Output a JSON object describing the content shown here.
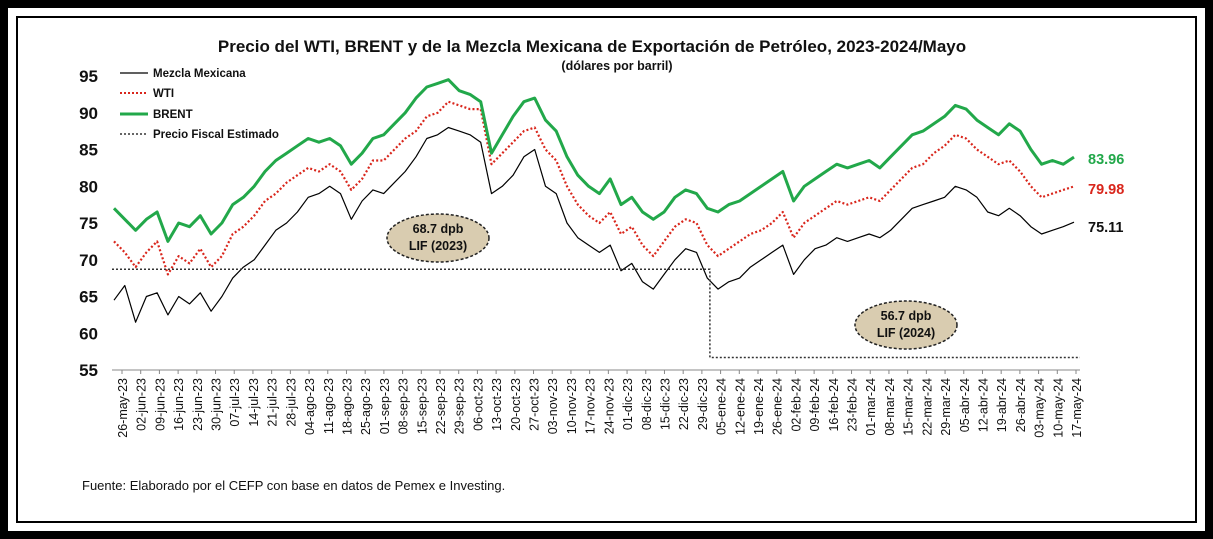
{
  "chart_data": {
    "type": "line",
    "title": "Precio del WTI, BRENT y de la Mezcla Mexicana de Exportación de Petróleo, 2023-2024/Mayo",
    "subtitle": "(dólares por barril)",
    "source": "Fuente: Elaborado por el CEFP con base en datos de Pemex e Investing.",
    "ylim": [
      55,
      95
    ],
    "yticks": [
      55,
      60,
      65,
      70,
      75,
      80,
      85,
      90,
      95
    ],
    "x_start": "26-may-23",
    "x_end": "17-may-24",
    "tick_labels": [
      "26-may-23",
      "02-jun-23",
      "09-jun-23",
      "16-jun-23",
      "23-jun-23",
      "30-jun-23",
      "07-jul-23",
      "14-jul-23",
      "21-jul-23",
      "28-jul-23",
      "04-ago-23",
      "11-ago-23",
      "18-ago-23",
      "25-ago-23",
      "01-sep-23",
      "08-sep-23",
      "15-sep-23",
      "22-sep-23",
      "29-sep-23",
      "06-oct-23",
      "13-oct-23",
      "20-oct-23",
      "27-oct-23",
      "03-nov-23",
      "10-nov-23",
      "17-nov-23",
      "24-nov-23",
      "01-dic-23",
      "08-dic-23",
      "15-dic-23",
      "22-dic-23",
      "29-dic-23",
      "05-ene-24",
      "12-ene-24",
      "19-ene-24",
      "26-ene-24",
      "02-feb-24",
      "09-feb-24",
      "16-feb-24",
      "23-feb-24",
      "01-mar-24",
      "08-mar-24",
      "15-mar-24",
      "22-mar-24",
      "29-mar-24",
      "05-abr-24",
      "12-abr-24",
      "19-abr-24",
      "26-abr-24",
      "03-may-24",
      "10-may-24",
      "17-may-24"
    ],
    "legend": [
      "Mezcla Mexicana",
      "WTI",
      "BRENT",
      "Precio Fiscal Estimado"
    ],
    "colors": {
      "mezcla": "#000000",
      "wti": "#d9261c",
      "brent": "#22a84a",
      "fiscal": "#333333"
    },
    "series": [
      {
        "name": "Mezcla Mexicana",
        "key": "mezcla",
        "values": [
          64.5,
          66.5,
          61.5,
          65.0,
          65.5,
          62.5,
          65.0,
          64.0,
          65.5,
          63.0,
          65.0,
          67.5,
          69.0,
          70.0,
          72.0,
          74.0,
          75.0,
          76.5,
          78.5,
          79.0,
          80.0,
          79.0,
          75.5,
          78.0,
          79.5,
          79.0,
          80.5,
          82.0,
          84.0,
          86.5,
          87.0,
          88.0,
          87.5,
          87.0,
          86.0,
          79.0,
          80.0,
          81.5,
          84.0,
          85.0,
          80.0,
          79.0,
          75.0,
          73.0,
          72.0,
          71.0,
          72.0,
          68.5,
          69.5,
          67.0,
          66.0,
          68.0,
          70.0,
          71.5,
          71.0,
          67.5,
          66.0,
          67.0,
          67.5,
          69.0,
          70.0,
          71.0,
          72.0,
          68.0,
          70.0,
          71.5,
          72.0,
          73.0,
          72.5,
          73.0,
          73.5,
          73.0,
          74.0,
          75.5,
          77.0,
          77.5,
          78.0,
          78.5,
          80.0,
          79.5,
          78.5,
          76.5,
          76.0,
          77.0,
          76.0,
          74.5,
          73.5,
          74.0,
          74.5,
          75.11
        ]
      },
      {
        "name": "WTI",
        "key": "wti",
        "values": [
          72.5,
          71.0,
          69.0,
          71.0,
          72.5,
          68.0,
          70.5,
          69.5,
          71.5,
          69.0,
          70.5,
          73.5,
          74.5,
          76.0,
          78.0,
          79.0,
          80.5,
          81.5,
          82.5,
          82.0,
          83.0,
          82.0,
          79.5,
          81.0,
          83.5,
          83.5,
          85.0,
          86.5,
          87.5,
          89.5,
          90.0,
          91.5,
          91.0,
          90.5,
          90.5,
          83.0,
          84.5,
          86.0,
          87.5,
          88.0,
          85.0,
          83.5,
          80.0,
          77.5,
          76.0,
          75.0,
          76.5,
          73.5,
          74.5,
          72.0,
          70.5,
          72.5,
          74.5,
          75.5,
          75.0,
          72.0,
          70.5,
          71.5,
          72.5,
          73.5,
          74.0,
          75.0,
          76.5,
          73.0,
          75.0,
          76.0,
          77.0,
          78.0,
          77.5,
          78.0,
          78.5,
          78.0,
          79.5,
          81.0,
          82.5,
          83.0,
          84.5,
          85.5,
          87.0,
          86.5,
          85.0,
          84.0,
          83.0,
          83.5,
          82.0,
          80.0,
          78.5,
          79.0,
          79.5,
          79.98
        ]
      },
      {
        "name": "BRENT",
        "key": "brent",
        "values": [
          77.0,
          75.5,
          74.0,
          75.5,
          76.5,
          72.5,
          75.0,
          74.5,
          76.0,
          73.5,
          75.0,
          77.5,
          78.5,
          80.0,
          82.0,
          83.5,
          84.5,
          85.5,
          86.5,
          86.0,
          86.5,
          85.5,
          83.0,
          84.5,
          86.5,
          87.0,
          88.5,
          90.0,
          92.0,
          93.5,
          94.0,
          94.5,
          93.0,
          92.5,
          91.5,
          84.5,
          87.0,
          89.5,
          91.5,
          92.0,
          89.0,
          87.5,
          84.0,
          81.5,
          80.0,
          79.0,
          81.0,
          77.5,
          78.5,
          76.5,
          75.5,
          76.5,
          78.5,
          79.5,
          79.0,
          77.0,
          76.5,
          77.5,
          78.0,
          79.0,
          80.0,
          81.0,
          82.0,
          78.0,
          80.0,
          81.0,
          82.0,
          83.0,
          82.5,
          83.0,
          83.5,
          82.5,
          84.0,
          85.5,
          87.0,
          87.5,
          88.5,
          89.5,
          91.0,
          90.5,
          89.0,
          88.0,
          87.0,
          88.5,
          87.5,
          85.0,
          83.0,
          83.5,
          83.0,
          83.96
        ]
      },
      {
        "name": "Precio Fiscal Estimado",
        "key": "fiscal",
        "values": [
          68.7,
          56.7
        ],
        "break_date": "01-ene-24"
      }
    ],
    "end_labels": [
      {
        "key": "brent",
        "text": "83.96"
      },
      {
        "key": "wti",
        "text": "79.98"
      },
      {
        "key": "mezcla",
        "text": "75.11"
      }
    ],
    "annotations": [
      {
        "line1": "68.7 dpb",
        "line2": "LIF (2023)"
      },
      {
        "line1": "56.7 dpb",
        "line2": "LIF (2024)"
      }
    ]
  }
}
